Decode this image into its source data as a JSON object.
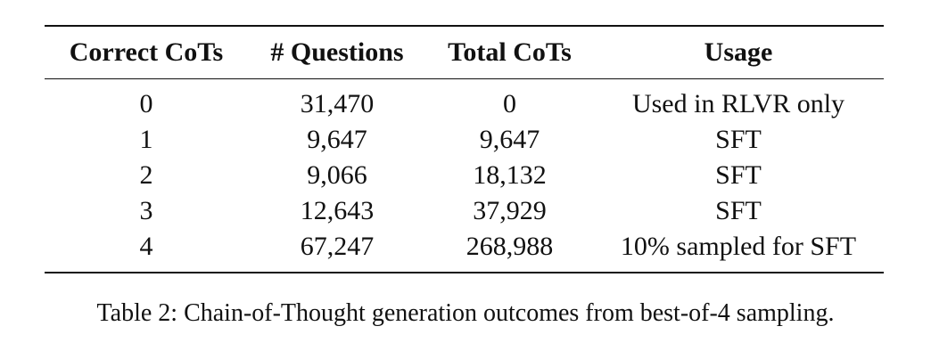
{
  "table": {
    "headers": [
      "Correct CoTs",
      "# Questions",
      "Total CoTs",
      "Usage"
    ],
    "rows": [
      [
        "0",
        "31,470",
        "0",
        "Used in RLVR only"
      ],
      [
        "1",
        "9,647",
        "9,647",
        "SFT"
      ],
      [
        "2",
        "9,066",
        "18,132",
        "SFT"
      ],
      [
        "3",
        "12,643",
        "37,929",
        "SFT"
      ],
      [
        "4",
        "67,247",
        "268,988",
        "10% sampled for SFT"
      ]
    ]
  },
  "caption": "Table 2: Chain-of-Thought generation outcomes from best-of-4 sampling."
}
